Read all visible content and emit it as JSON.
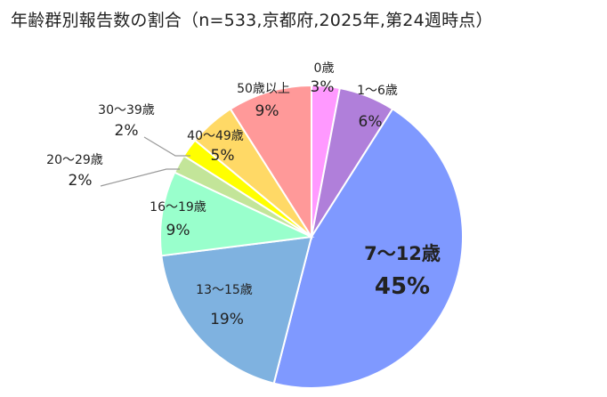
{
  "chart_data": {
    "type": "pie",
    "title": "年齢群別報告数の割合（n=533,京都府,2025年,第24週時点）",
    "slices": [
      {
        "label": "0歳",
        "value": 3,
        "value_label": "3%",
        "color": "#ff99ff"
      },
      {
        "label": "1～6歳",
        "value": 6,
        "value_label": "6%",
        "color": "#b07fda"
      },
      {
        "label": "7～12歳",
        "value": 45,
        "value_label": "45%",
        "color": "#7f99ff"
      },
      {
        "label": "13～15歳",
        "value": 19,
        "value_label": "19%",
        "color": "#7fb2e0"
      },
      {
        "label": "16～19歳",
        "value": 9,
        "value_label": "9%",
        "color": "#99ffcc"
      },
      {
        "label": "20～29歳",
        "value": 2,
        "value_label": "2%",
        "color": "#c3e599"
      },
      {
        "label": "30～39歳",
        "value": 2,
        "value_label": "2%",
        "color": "#ffff00"
      },
      {
        "label": "40～49歳",
        "value": 5,
        "value_label": "5%",
        "color": "#ffd966"
      },
      {
        "label": "50歳以上",
        "value": 9,
        "value_label": "9%",
        "color": "#ff9999"
      }
    ],
    "start_angle": "12 o'clock",
    "direction": "clockwise",
    "legend": "none (labels on or beside slices)"
  }
}
